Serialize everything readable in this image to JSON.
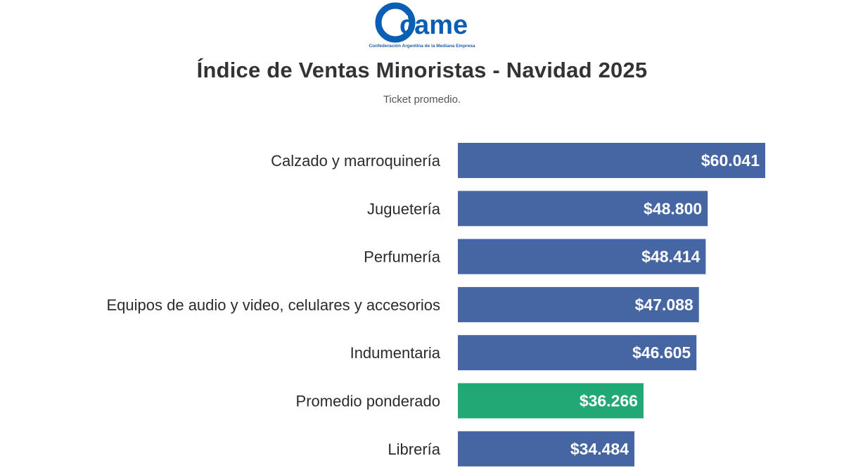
{
  "logo": {
    "word": "came",
    "caption": "Confederación Argentina de la Mediana Empresa",
    "color": "#0a5fb4"
  },
  "chart_data": {
    "type": "bar",
    "orientation": "horizontal",
    "title": "Índice de Ventas Minoristas - Navidad 2025",
    "subtitle": "Ticket promedio.",
    "categories": [
      "Calzado y marroquinería",
      "Juguetería",
      "Perfumería",
      "Equipos de audio y video, celulares y accesorios",
      "Indumentaria",
      "Promedio ponderado",
      "Librería"
    ],
    "values": [
      60041,
      48800,
      48414,
      47088,
      46605,
      36266,
      34484
    ],
    "value_labels": [
      "$60.041",
      "$48.800",
      "$48.414",
      "$47.088",
      "$46.605",
      "$36.266",
      "$34.484"
    ],
    "bar_colors": [
      "#4566a3",
      "#4566a3",
      "#4566a3",
      "#4566a3",
      "#4566a3",
      "#21a874",
      "#4566a3"
    ],
    "xlim": [
      0,
      60041
    ],
    "grid": false,
    "legend": "none"
  }
}
